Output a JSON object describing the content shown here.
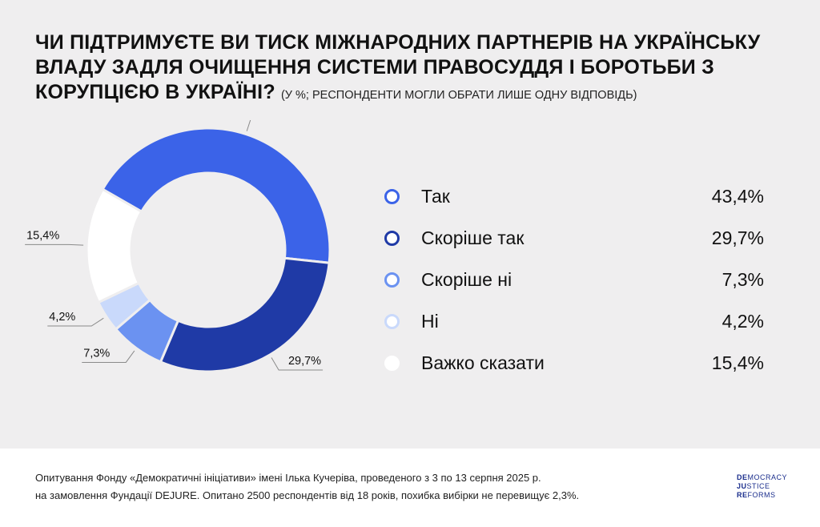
{
  "title": {
    "main": "ЧИ ПІДТРИМУЄТЕ ВИ ТИСК МІЖНАРОДНИХ ПАРТНЕРІВ НА УКРАЇНСЬКУ ВЛАДУ ЗАДЛЯ ОЧИЩЕННЯ СИСТЕМИ ПРАВОСУДДЯ І БОРОТЬБИ З КОРУПЦІЄЮ В УКРАЇНІ?",
    "sub": "(У %; РЕСПОНДЕНТИ МОГЛИ ОБРАТИ ЛИШЕ ОДНУ ВІДПОВІДЬ)"
  },
  "chart_data": {
    "type": "pie",
    "subtype": "donut",
    "categories": [
      "Так",
      "Скоріше так",
      "Скоріше ні",
      "Ні",
      "Важко сказати"
    ],
    "values": [
      43.4,
      29.7,
      7.3,
      4.2,
      15.4
    ],
    "labels": [
      "43,4%",
      "29,7%",
      "7,3%",
      "4,2%",
      "15,4%"
    ],
    "colors": [
      "#3b63e8",
      "#1f3aa6",
      "#6b92f1",
      "#c9d9fb",
      "#ffffff"
    ],
    "legend_position": "right"
  },
  "footer": {
    "line1": "Опитування Фонду «Демократичні ініціативи» імені Ілька Кучеріва, проведеного з 3 по 13 серпня 2025 р.",
    "line2": "на замовлення Фундації DEJURE. Опитано 2500 респондентів від 18 років, похибка вибірки не перевищує 2,3%."
  },
  "logo": {
    "line1_bold": "DE",
    "line1_rest": "MOCRACY",
    "line2_bold": "JU",
    "line2_rest": "STICE",
    "line3_bold": "RE",
    "line3_rest": "FORMS"
  }
}
